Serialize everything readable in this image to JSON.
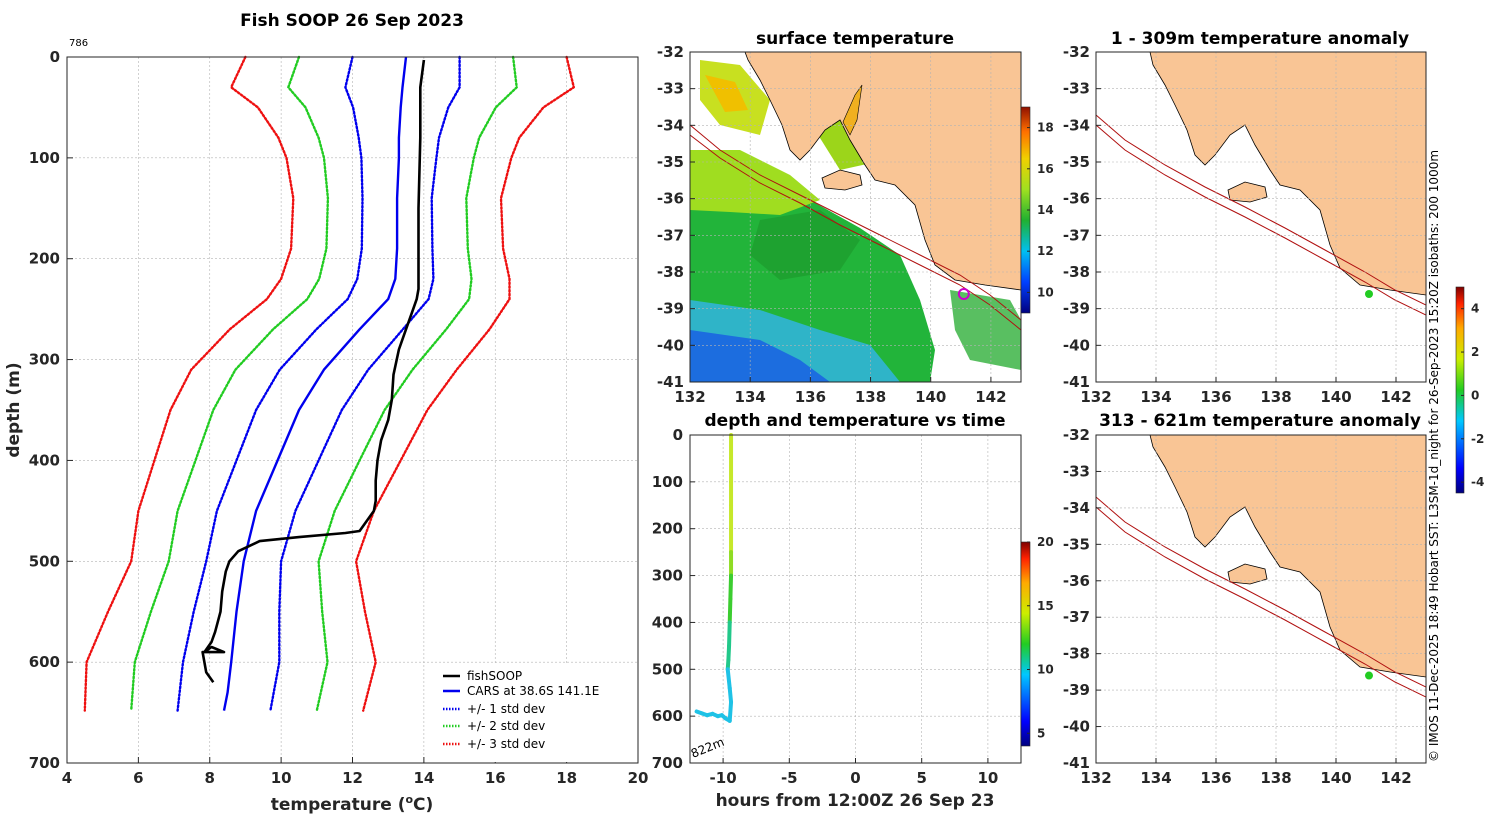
{
  "chart_data": [
    {
      "id": "profile",
      "type": "line",
      "title": "Fish SOOP 26 Sep 2023",
      "annotation": "786",
      "xlabel": "temperature (",
      "xlabel_sup": "o",
      "xlabel_unit": "C)",
      "ylabel": "depth (m)",
      "xlim": [
        4,
        20
      ],
      "ylim": [
        0,
        700
      ],
      "xticks": [
        4,
        6,
        8,
        10,
        12,
        14,
        16,
        18,
        20
      ],
      "yticks": [
        0,
        100,
        200,
        300,
        400,
        500,
        600,
        700
      ],
      "series": [
        {
          "name": "fishSOOP",
          "color": "#000000",
          "style": "solid",
          "x": [
            14.0,
            13.9,
            13.9,
            13.85,
            13.85,
            13.85,
            13.8,
            13.7,
            13.5,
            13.3,
            13.15,
            13.1,
            13.0,
            12.8,
            12.7,
            12.65,
            12.65,
            12.6,
            12.2,
            11.8,
            10.5,
            9.4,
            8.8,
            8.55,
            8.45,
            8.35,
            8.3,
            8.15,
            8.05,
            7.85,
            8.05,
            8.4,
            7.8,
            7.9,
            8.1
          ],
          "y": [
            3,
            30,
            80,
            150,
            200,
            230,
            240,
            250,
            270,
            290,
            315,
            340,
            360,
            380,
            400,
            420,
            440,
            450,
            470,
            472,
            476,
            480,
            490,
            500,
            510,
            530,
            550,
            570,
            580,
            590,
            585,
            590,
            590,
            610,
            620
          ]
        },
        {
          "name": "CARS at 38.6S 141.1E",
          "color": "#0000ee",
          "style": "solid",
          "x": [
            13.5,
            13.4,
            13.35,
            13.3,
            13.3,
            13.25,
            13.25,
            13.2,
            13.0,
            12.2,
            11.2,
            10.5,
            9.9,
            9.3,
            8.95,
            8.75,
            8.6,
            8.5,
            8.4
          ],
          "y": [
            0,
            30,
            50,
            80,
            100,
            140,
            190,
            220,
            240,
            270,
            310,
            350,
            400,
            450,
            500,
            550,
            600,
            630,
            648
          ]
        },
        {
          "name": "+/- 1 std dev",
          "color": "#0000ee",
          "style": "dotted",
          "x": [
            12.0,
            11.9,
            11.9,
            12.1,
            12.3,
            12.3,
            12.3,
            12.2,
            11.8,
            10.8,
            10.0,
            9.2,
            8.5,
            7.9,
            7.5,
            7.15,
            14.95,
            14.8,
            14.55,
            14.5,
            14.5,
            14.4,
            14.4,
            14.35,
            14.2,
            13.5,
            12.5,
            11.9,
            11.1,
            10.5,
            10.1,
            9.9,
            9.75
          ]
        },
        {
          "name": "+/- 2 std dev",
          "color": "#22cc22",
          "style": "dotted"
        },
        {
          "name": "+/- 3 std dev",
          "color": "#ee1111",
          "style": "dotted"
        }
      ]
    },
    {
      "id": "sst_map",
      "type": "heatmap",
      "title": "surface temperature",
      "xlim": [
        132,
        143
      ],
      "ylim": [
        -41,
        -32
      ],
      "xticks": [
        132,
        134,
        136,
        138,
        140,
        142
      ],
      "yticks": [
        -32,
        -33,
        -34,
        -35,
        -36,
        -37,
        -38,
        -39,
        -40,
        -41
      ],
      "colorbar_ticks": [
        10,
        12,
        14,
        16,
        18
      ],
      "colorbar_range": [
        9,
        19
      ],
      "marker": {
        "lon": 141.1,
        "lat": -38.6,
        "color": "#cc00cc"
      }
    },
    {
      "id": "time_depth",
      "type": "scatter",
      "title": "depth and temperature vs time",
      "xlabel": "hours from 12:00Z 26 Sep 23",
      "xlim": [
        -12.5,
        12.5
      ],
      "ylim": [
        0,
        700
      ],
      "xticks": [
        -10,
        -5,
        0,
        5,
        10
      ],
      "yticks": [
        0,
        100,
        200,
        300,
        400,
        500,
        600,
        700
      ],
      "annotation": "822m",
      "colorbar_ticks": [
        5,
        10,
        15,
        20
      ],
      "colorbar_range": [
        4,
        20
      ],
      "hours": [
        -9.4,
        -9.4,
        -9.4,
        -9.4,
        -9.4,
        -9.4,
        -9.4,
        -9.45,
        -9.5,
        -9.55,
        -9.6,
        -9.65,
        -9.5,
        -9.4,
        -9.5,
        -9.8,
        -10.1,
        -10.4,
        -10.8,
        -11.2,
        -11.6,
        -12.0
      ],
      "depths": [
        0,
        50,
        100,
        150,
        200,
        250,
        300,
        350,
        400,
        450,
        480,
        500,
        540,
        570,
        610,
        605,
        598,
        600,
        595,
        598,
        594,
        590
      ]
    },
    {
      "id": "anom_upper",
      "type": "heatmap",
      "title": "1 - 309m temperature anomaly",
      "xlim": [
        132,
        143
      ],
      "ylim": [
        -41,
        -32
      ],
      "xticks": [
        132,
        134,
        136,
        138,
        140,
        142
      ],
      "yticks": [
        -32,
        -33,
        -34,
        -35,
        -36,
        -37,
        -38,
        -39,
        -40,
        -41
      ],
      "marker": {
        "lon": 141.1,
        "lat": -38.6,
        "color": "#22cc22"
      }
    },
    {
      "id": "anom_lower",
      "type": "heatmap",
      "title": "313 - 621m temperature anomaly",
      "xlim": [
        132,
        143
      ],
      "ylim": [
        -41,
        -32
      ],
      "xticks": [
        132,
        134,
        136,
        138,
        140,
        142
      ],
      "yticks": [
        -32,
        -33,
        -34,
        -35,
        -36,
        -37,
        -38,
        -39,
        -40,
        -41
      ],
      "marker": {
        "lon": 141.1,
        "lat": -38.6,
        "color": "#22cc22"
      }
    },
    {
      "id": "anom_colorbar",
      "type": "heatmap",
      "colorbar_ticks": [
        -4,
        -2,
        0,
        2,
        4
      ],
      "colorbar_range": [
        -4.5,
        5
      ]
    }
  ],
  "credit": "© IMOS 11-Dec-2025 18:49 Hobart SST: L3SM-1d_night for 26-Sep-2023 15:20Z isobaths: 200  1000m",
  "colors": {
    "land": "#f9c595",
    "isobath": "#b01010",
    "axis": "#262626"
  }
}
